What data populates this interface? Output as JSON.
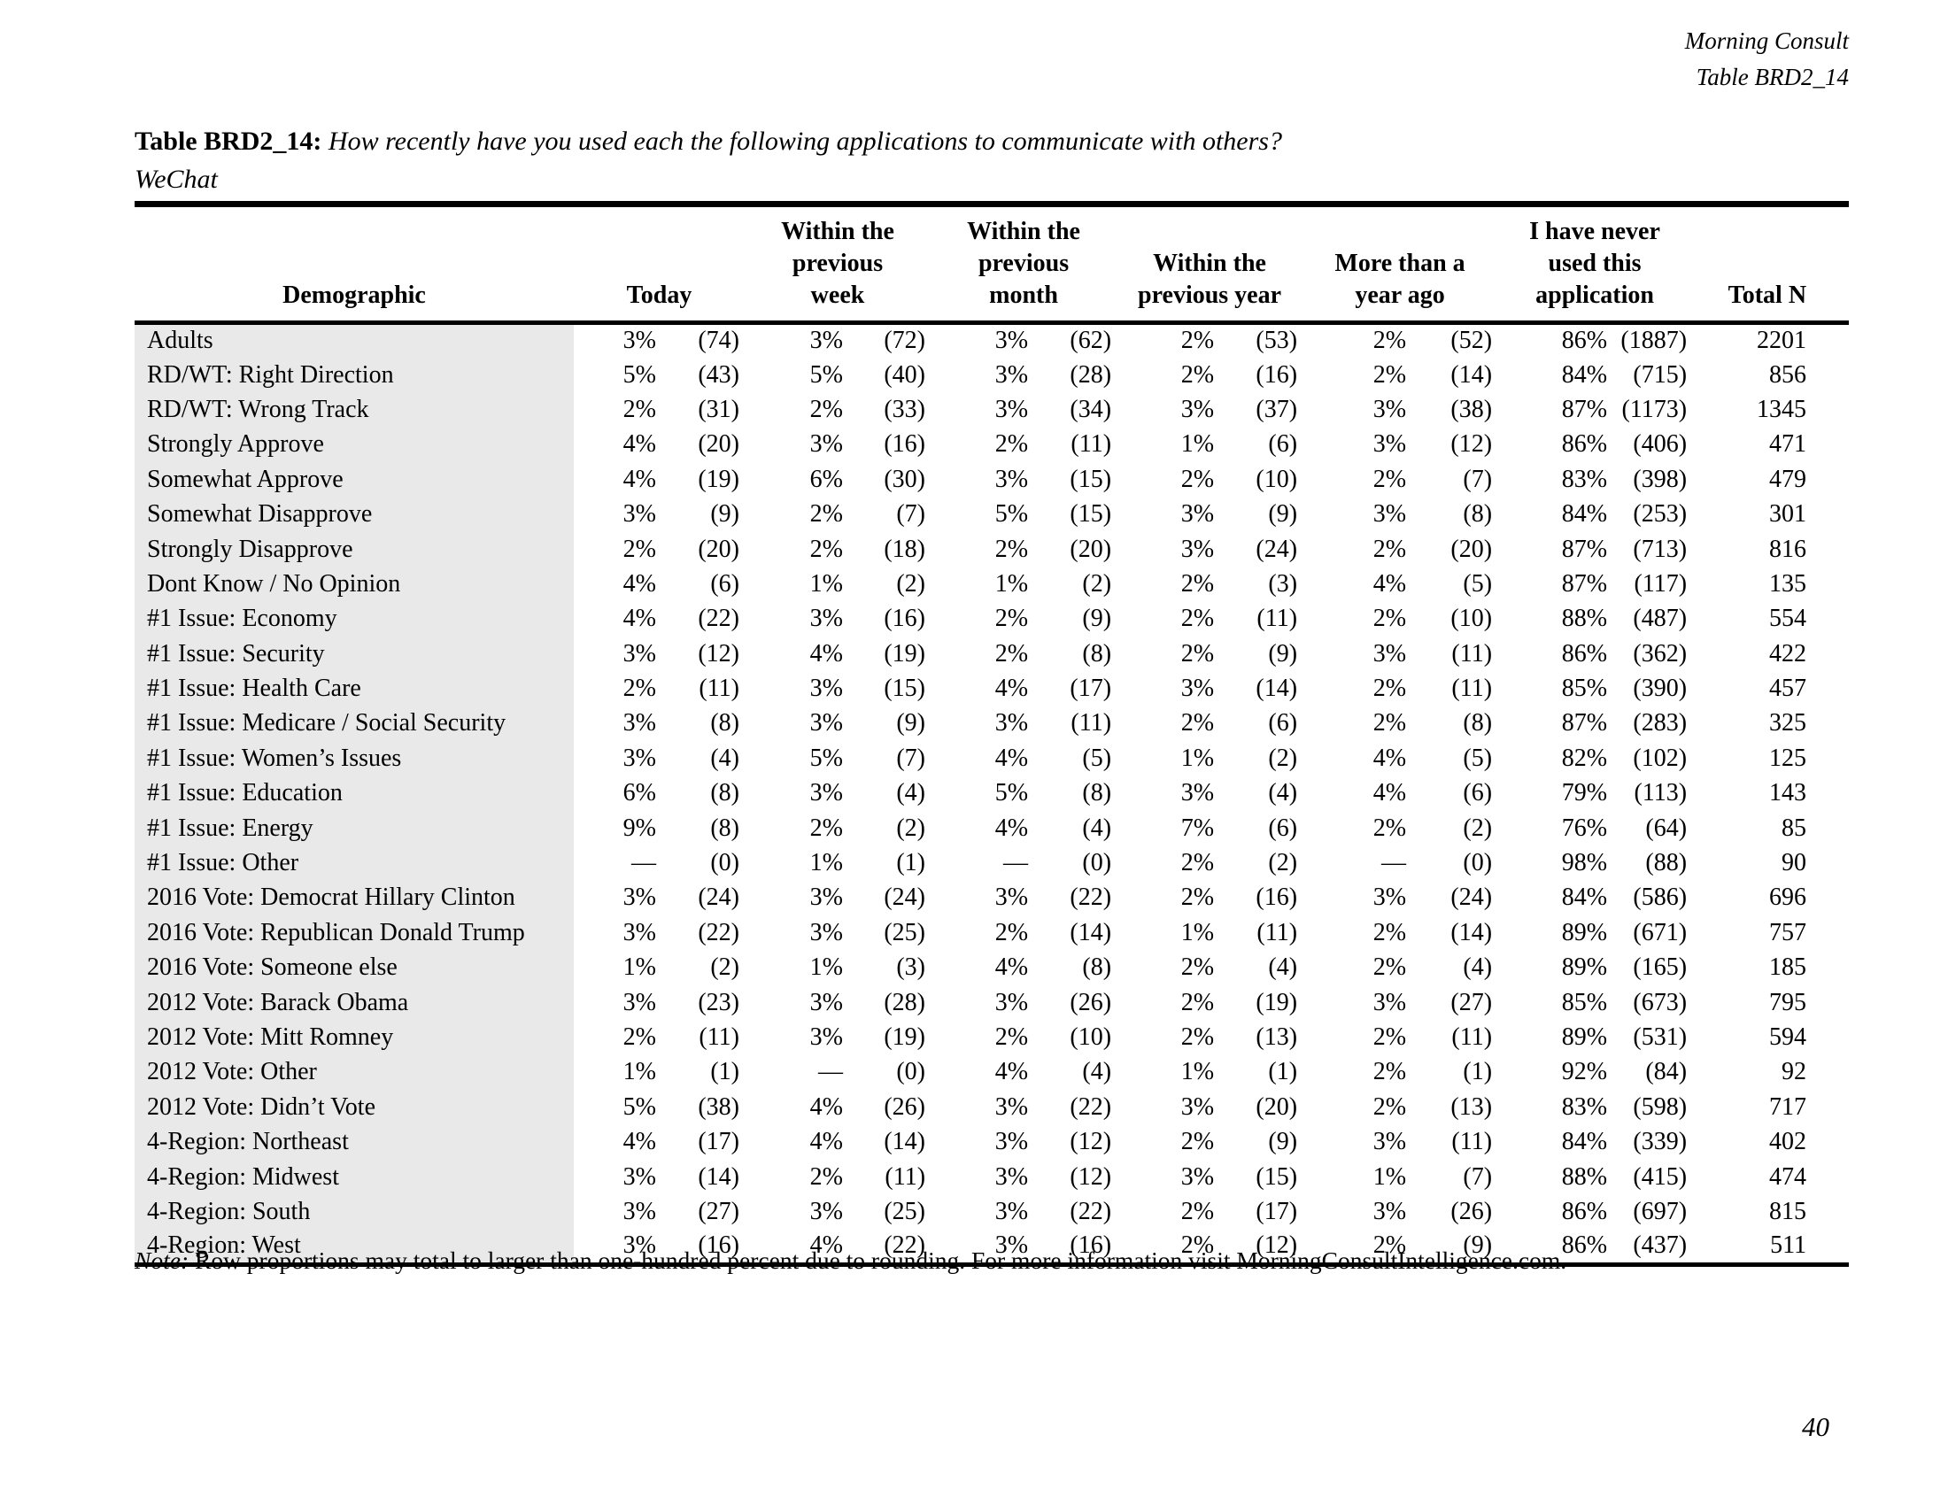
{
  "brand": {
    "line1": "Morning Consult",
    "line2": "Table BRD2_14"
  },
  "title": {
    "label": "Table BRD2_14:",
    "question": "How recently have you used each the following applications to communicate with others?",
    "subtitle": "WeChat"
  },
  "table": {
    "headers": {
      "demographic": "Demographic",
      "today": "Today",
      "week": "Within the\nprevious\nweek",
      "month": "Within the\nprevious\nmonth",
      "year": "Within the\nprevious year",
      "year_plus": "More than a\nyear ago",
      "never": "I have never\nused this\napplication",
      "total": "Total N"
    },
    "rows": [
      [
        "Adults",
        "3%",
        "(74)",
        "3%",
        "(72)",
        "3%",
        "(62)",
        "2%",
        "(53)",
        "2%",
        "(52)",
        "86%",
        "(1887)",
        "2201"
      ],
      [
        "RD/WT: Right Direction",
        "5%",
        "(43)",
        "5%",
        "(40)",
        "3%",
        "(28)",
        "2%",
        "(16)",
        "2%",
        "(14)",
        "84%",
        "(715)",
        "856"
      ],
      [
        "RD/WT: Wrong Track",
        "2%",
        "(31)",
        "2%",
        "(33)",
        "3%",
        "(34)",
        "3%",
        "(37)",
        "3%",
        "(38)",
        "87%",
        "(1173)",
        "1345"
      ],
      [
        "Strongly Approve",
        "4%",
        "(20)",
        "3%",
        "(16)",
        "2%",
        "(11)",
        "1%",
        "(6)",
        "3%",
        "(12)",
        "86%",
        "(406)",
        "471"
      ],
      [
        "Somewhat Approve",
        "4%",
        "(19)",
        "6%",
        "(30)",
        "3%",
        "(15)",
        "2%",
        "(10)",
        "2%",
        "(7)",
        "83%",
        "(398)",
        "479"
      ],
      [
        "Somewhat Disapprove",
        "3%",
        "(9)",
        "2%",
        "(7)",
        "5%",
        "(15)",
        "3%",
        "(9)",
        "3%",
        "(8)",
        "84%",
        "(253)",
        "301"
      ],
      [
        "Strongly Disapprove",
        "2%",
        "(20)",
        "2%",
        "(18)",
        "2%",
        "(20)",
        "3%",
        "(24)",
        "2%",
        "(20)",
        "87%",
        "(713)",
        "816"
      ],
      [
        "Dont Know / No Opinion",
        "4%",
        "(6)",
        "1%",
        "(2)",
        "1%",
        "(2)",
        "2%",
        "(3)",
        "4%",
        "(5)",
        "87%",
        "(117)",
        "135"
      ],
      [
        "#1 Issue: Economy",
        "4%",
        "(22)",
        "3%",
        "(16)",
        "2%",
        "(9)",
        "2%",
        "(11)",
        "2%",
        "(10)",
        "88%",
        "(487)",
        "554"
      ],
      [
        "#1 Issue: Security",
        "3%",
        "(12)",
        "4%",
        "(19)",
        "2%",
        "(8)",
        "2%",
        "(9)",
        "3%",
        "(11)",
        "86%",
        "(362)",
        "422"
      ],
      [
        "#1 Issue: Health Care",
        "2%",
        "(11)",
        "3%",
        "(15)",
        "4%",
        "(17)",
        "3%",
        "(14)",
        "2%",
        "(11)",
        "85%",
        "(390)",
        "457"
      ],
      [
        "#1 Issue: Medicare / Social Security",
        "3%",
        "(8)",
        "3%",
        "(9)",
        "3%",
        "(11)",
        "2%",
        "(6)",
        "2%",
        "(8)",
        "87%",
        "(283)",
        "325"
      ],
      [
        "#1 Issue: Women’s Issues",
        "3%",
        "(4)",
        "5%",
        "(7)",
        "4%",
        "(5)",
        "1%",
        "(2)",
        "4%",
        "(5)",
        "82%",
        "(102)",
        "125"
      ],
      [
        "#1 Issue: Education",
        "6%",
        "(8)",
        "3%",
        "(4)",
        "5%",
        "(8)",
        "3%",
        "(4)",
        "4%",
        "(6)",
        "79%",
        "(113)",
        "143"
      ],
      [
        "#1 Issue: Energy",
        "9%",
        "(8)",
        "2%",
        "(2)",
        "4%",
        "(4)",
        "7%",
        "(6)",
        "2%",
        "(2)",
        "76%",
        "(64)",
        "85"
      ],
      [
        "#1 Issue: Other",
        "—",
        "(0)",
        "1%",
        "(1)",
        "—",
        "(0)",
        "2%",
        "(2)",
        "—",
        "(0)",
        "98%",
        "(88)",
        "90"
      ],
      [
        "2016 Vote: Democrat Hillary Clinton",
        "3%",
        "(24)",
        "3%",
        "(24)",
        "3%",
        "(22)",
        "2%",
        "(16)",
        "3%",
        "(24)",
        "84%",
        "(586)",
        "696"
      ],
      [
        "2016 Vote: Republican Donald Trump",
        "3%",
        "(22)",
        "3%",
        "(25)",
        "2%",
        "(14)",
        "1%",
        "(11)",
        "2%",
        "(14)",
        "89%",
        "(671)",
        "757"
      ],
      [
        "2016 Vote: Someone else",
        "1%",
        "(2)",
        "1%",
        "(3)",
        "4%",
        "(8)",
        "2%",
        "(4)",
        "2%",
        "(4)",
        "89%",
        "(165)",
        "185"
      ],
      [
        "2012 Vote: Barack Obama",
        "3%",
        "(23)",
        "3%",
        "(28)",
        "3%",
        "(26)",
        "2%",
        "(19)",
        "3%",
        "(27)",
        "85%",
        "(673)",
        "795"
      ],
      [
        "2012 Vote: Mitt Romney",
        "2%",
        "(11)",
        "3%",
        "(19)",
        "2%",
        "(10)",
        "2%",
        "(13)",
        "2%",
        "(11)",
        "89%",
        "(531)",
        "594"
      ],
      [
        "2012 Vote: Other",
        "1%",
        "(1)",
        "—",
        "(0)",
        "4%",
        "(4)",
        "1%",
        "(1)",
        "2%",
        "(1)",
        "92%",
        "(84)",
        "92"
      ],
      [
        "2012 Vote: Didn’t Vote",
        "5%",
        "(38)",
        "4%",
        "(26)",
        "3%",
        "(22)",
        "3%",
        "(20)",
        "2%",
        "(13)",
        "83%",
        "(598)",
        "717"
      ],
      [
        "4-Region: Northeast",
        "4%",
        "(17)",
        "4%",
        "(14)",
        "3%",
        "(12)",
        "2%",
        "(9)",
        "3%",
        "(11)",
        "84%",
        "(339)",
        "402"
      ],
      [
        "4-Region: Midwest",
        "3%",
        "(14)",
        "2%",
        "(11)",
        "3%",
        "(12)",
        "3%",
        "(15)",
        "1%",
        "(7)",
        "88%",
        "(415)",
        "474"
      ],
      [
        "4-Region: South",
        "3%",
        "(27)",
        "3%",
        "(25)",
        "3%",
        "(22)",
        "2%",
        "(17)",
        "3%",
        "(26)",
        "86%",
        "(697)",
        "815"
      ],
      [
        "4-Region: West",
        "3%",
        "(16)",
        "4%",
        "(22)",
        "3%",
        "(16)",
        "2%",
        "(12)",
        "2%",
        "(9)",
        "86%",
        "(437)",
        "511"
      ]
    ]
  },
  "note": {
    "prefix": "Note:",
    "text": "Row proportions may total to larger than one-hundred percent due to rounding. For more information visit MorningConsultIntelligence.com."
  },
  "page_number": "40"
}
